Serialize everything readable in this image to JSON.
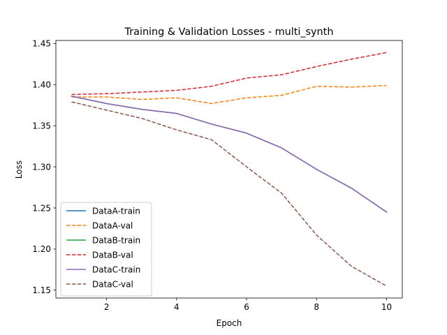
{
  "chart_data": {
    "type": "line",
    "title": "Training & Validation Losses - multi_synth",
    "xlabel": "Epoch",
    "ylabel": "Loss",
    "x": [
      1,
      2,
      3,
      4,
      5,
      6,
      7,
      8,
      9,
      10
    ],
    "xlim": [
      0.55,
      10.45
    ],
    "ylim": [
      1.1405,
      1.4537
    ],
    "x_ticks": [
      2,
      4,
      6,
      8,
      10
    ],
    "y_ticks": [
      1.15,
      1.2,
      1.25,
      1.3,
      1.35,
      1.4,
      1.45
    ],
    "x_tick_labels": [
      "2",
      "4",
      "6",
      "8",
      "10"
    ],
    "y_tick_labels": [
      "1.15",
      "1.20",
      "1.25",
      "1.30",
      "1.35",
      "1.40",
      "1.45"
    ],
    "grid": false,
    "legend_position": "lower-left",
    "series": [
      {
        "name": "DataA-train",
        "color": "#1f77b4",
        "dash": "solid",
        "values": [
          1.386,
          1.377,
          1.37,
          1.365,
          1.352,
          1.341,
          1.323,
          1.297,
          1.274,
          1.245
        ]
      },
      {
        "name": "DataA-val",
        "color": "#ff7f0e",
        "dash": "dashed",
        "values": [
          1.385,
          1.385,
          1.382,
          1.384,
          1.377,
          1.384,
          1.387,
          1.398,
          1.397,
          1.399
        ]
      },
      {
        "name": "DataB-train",
        "color": "#2ca02c",
        "dash": "solid",
        "values": [
          1.386,
          1.377,
          1.37,
          1.365,
          1.352,
          1.341,
          1.323,
          1.297,
          1.274,
          1.245
        ]
      },
      {
        "name": "DataB-val",
        "color": "#d62728",
        "dash": "dashed",
        "values": [
          1.388,
          1.389,
          1.391,
          1.393,
          1.398,
          1.408,
          1.412,
          1.422,
          1.431,
          1.439
        ]
      },
      {
        "name": "DataC-train",
        "color": "#9467bd",
        "dash": "solid",
        "values": [
          1.386,
          1.377,
          1.37,
          1.365,
          1.352,
          1.341,
          1.323,
          1.297,
          1.274,
          1.245
        ]
      },
      {
        "name": "DataC-val",
        "color": "#8c564b",
        "dash": "dashed",
        "values": [
          1.379,
          1.369,
          1.359,
          1.345,
          1.333,
          1.3,
          1.268,
          1.217,
          1.179,
          1.155
        ]
      }
    ]
  }
}
